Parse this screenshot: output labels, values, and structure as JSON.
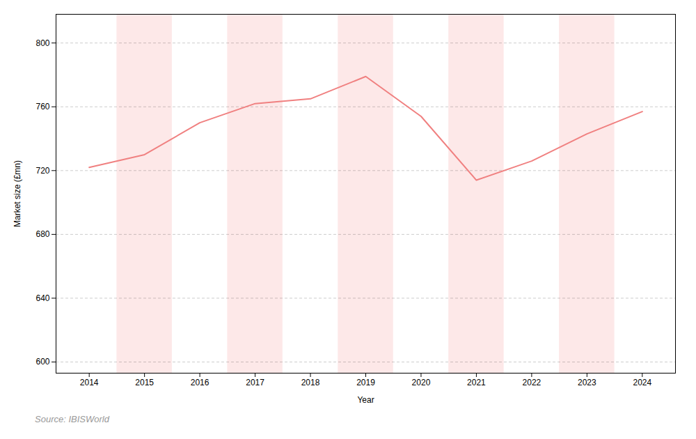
{
  "chart_data": {
    "type": "line",
    "xlabel": "Year",
    "ylabel": "Market size (£mn)",
    "source": "Source: IBISWorld",
    "x": [
      2014,
      2015,
      2016,
      2017,
      2018,
      2019,
      2020,
      2021,
      2022,
      2023,
      2024
    ],
    "values": [
      722,
      730,
      750,
      762,
      765,
      779,
      754,
      714,
      726,
      743,
      757
    ],
    "color": "#f08080",
    "bands": {
      "x": [
        2015,
        2017,
        2019,
        2021,
        2023
      ],
      "color": "#fde8e8"
    },
    "xlim": [
      2013.4,
      2024.6
    ],
    "xticks": [
      2014,
      2015,
      2016,
      2017,
      2018,
      2019,
      2020,
      2021,
      2022,
      2023,
      2024
    ],
    "ylim": [
      593,
      818
    ],
    "yticks": [
      600,
      640,
      680,
      720,
      760,
      800
    ],
    "grid": true
  }
}
